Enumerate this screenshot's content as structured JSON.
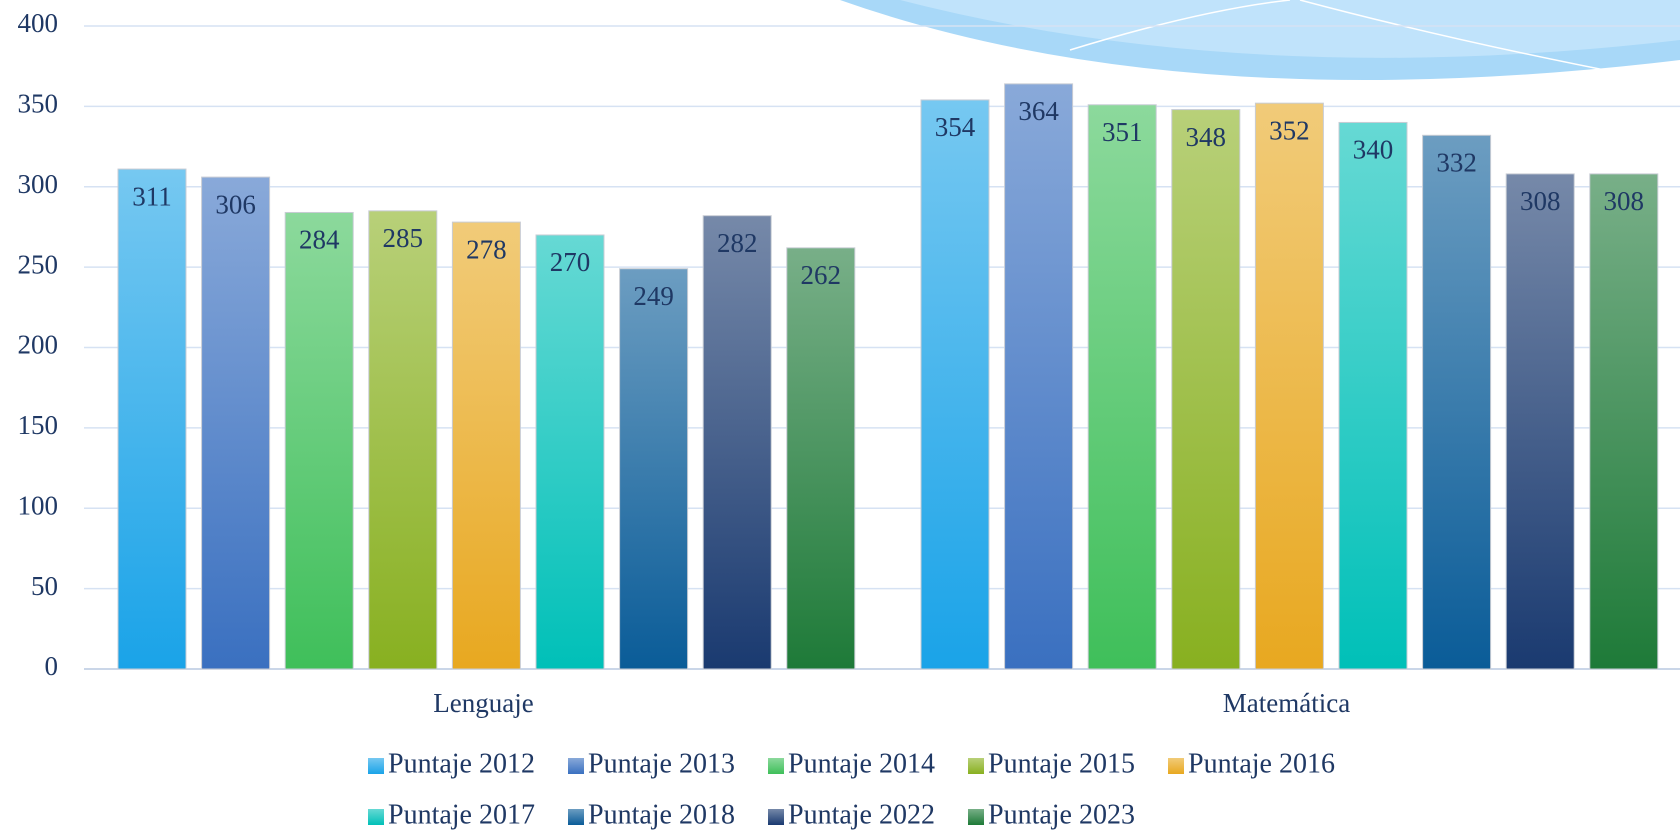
{
  "chart_data": {
    "type": "bar",
    "categories": [
      "Lenguaje",
      "Matemática"
    ],
    "series": [
      {
        "name": "Puntaje 2012",
        "color": "#1aa3e8",
        "values": [
          311,
          354
        ]
      },
      {
        "name": "Puntaje 2013",
        "color": "#3a70c0",
        "values": [
          306,
          364
        ]
      },
      {
        "name": "Puntaje 2014",
        "color": "#3fbf5a",
        "values": [
          284,
          351
        ]
      },
      {
        "name": "Puntaje 2015",
        "color": "#88b020",
        "values": [
          285,
          348
        ]
      },
      {
        "name": "Puntaje 2016",
        "color": "#e8a820",
        "values": [
          278,
          352
        ]
      },
      {
        "name": "Puntaje 2017",
        "color": "#00c0b8",
        "values": [
          270,
          340
        ]
      },
      {
        "name": "Puntaje 2018",
        "color": "#0a5c98",
        "values": [
          249,
          332
        ]
      },
      {
        "name": "Puntaje 2022",
        "color": "#1a3a70",
        "values": [
          282,
          308
        ]
      },
      {
        "name": "Puntaje 2023",
        "color": "#1e7a38",
        "values": [
          262,
          308
        ]
      }
    ],
    "ylim": [
      0,
      400
    ],
    "yticks": [
      0,
      50,
      100,
      150,
      200,
      250,
      300,
      350,
      400
    ],
    "grid": true,
    "legend": "bottom"
  }
}
